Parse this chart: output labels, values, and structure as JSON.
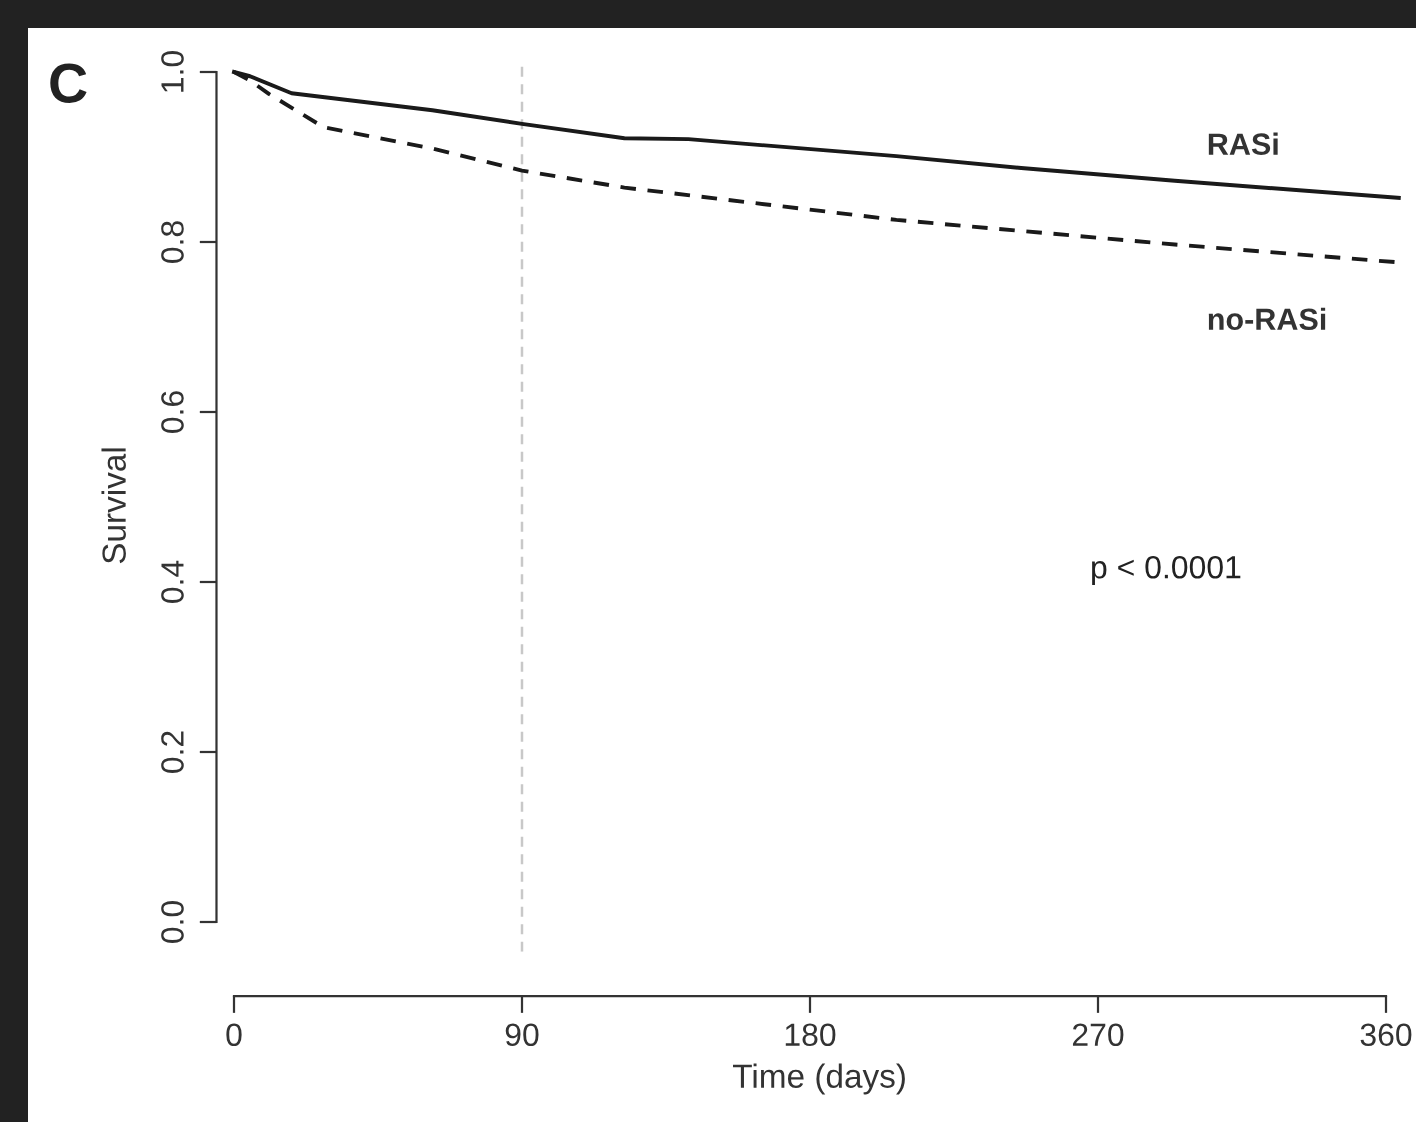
{
  "chart_data": {
    "type": "line",
    "xlabel": "Time (days)",
    "ylabel": "Survival",
    "xlim": [
      -2,
      368
    ],
    "ylim": [
      -0.035,
      1.015
    ],
    "xticks": [
      0,
      90,
      180,
      270,
      360
    ],
    "yticks": [
      {
        "value": 0,
        "label": "0.0"
      },
      0.2,
      0.4,
      0.6,
      0.8,
      {
        "value": 1,
        "label": "1.0"
      }
    ],
    "grid": false,
    "legend": false,
    "series": [
      {
        "name": "RASi",
        "color": "#1a1a1a",
        "line_style": "solid",
        "x": [
          0,
          5,
          18,
          40,
          62,
          90,
          122,
          142,
          207,
          246,
          294,
          364
        ],
        "values": [
          1.0,
          0.995,
          0.975,
          0.965,
          0.955,
          0.939,
          0.922,
          0.921,
          0.901,
          0.887,
          0.872,
          0.852
        ]
      },
      {
        "name": "no-RASi",
        "color": "#1a1a1a",
        "line_style": "dashed",
        "x": [
          0,
          5,
          11,
          28,
          62,
          90,
          122,
          207,
          294,
          364
        ],
        "values": [
          1.0,
          0.99,
          0.974,
          0.935,
          0.91,
          0.884,
          0.864,
          0.826,
          0.797,
          0.776
        ]
      }
    ],
    "ref_lines": [
      {
        "axis": "x",
        "value": 90,
        "color": "#c8c8c8",
        "line_style": "dashed"
      }
    ],
    "annotations": [
      "C",
      "p < 0.0001"
    ]
  }
}
